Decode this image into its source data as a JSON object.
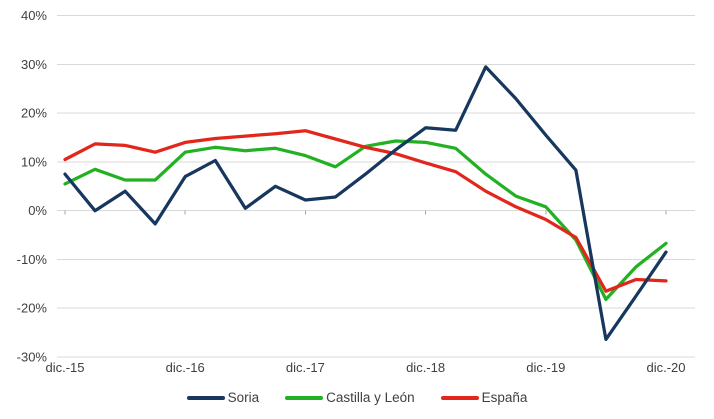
{
  "chart_data": {
    "type": "line",
    "title": "",
    "xlabel": "",
    "ylabel": "",
    "y_unit": "%",
    "ylim": [
      -30,
      40
    ],
    "grid": "horizontal",
    "legend_position": "bottom",
    "y_tick_labels": [
      "40%",
      "30%",
      "20%",
      "10%",
      "0%",
      "-10%",
      "-20%",
      "-30%"
    ],
    "y_tick_values": [
      40,
      30,
      20,
      10,
      0,
      -10,
      -20,
      -30
    ],
    "x_tick_labels": [
      "dic.-15",
      "dic.-16",
      "dic.-17",
      "dic.-18",
      "dic.-19",
      "dic.-20"
    ],
    "categories": [
      "dic.-15",
      "mar.-16",
      "jun.-16",
      "sep.-16",
      "dic.-16",
      "mar.-17",
      "jun.-17",
      "sep.-17",
      "dic.-17",
      "mar.-18",
      "jun.-18",
      "sep.-18",
      "dic.-18",
      "mar.-19",
      "jun.-19",
      "sep.-19",
      "dic.-19",
      "mar.-20",
      "jun.-20",
      "sep.-20",
      "dic.-20"
    ],
    "series": [
      {
        "name": "Soria",
        "color": "#17375E",
        "values": [
          7.5,
          0,
          4,
          -2.7,
          7,
          10.3,
          0.5,
          5,
          2.2,
          2.8,
          7.5,
          12.5,
          17,
          16.5,
          29.5,
          23,
          15.5,
          8.3,
          -26.4,
          -17.5,
          -8.5
        ]
      },
      {
        "name": "Castilla y León",
        "color": "#22B122",
        "values": [
          5.5,
          8.5,
          6.3,
          6.3,
          12,
          13,
          12.3,
          12.8,
          11.3,
          9,
          13.2,
          14.3,
          14,
          12.8,
          7.5,
          3,
          0.8,
          -6,
          -18.2,
          -11.5,
          -6.7
        ]
      },
      {
        "name": "España",
        "color": "#E2261C",
        "values": [
          10.5,
          13.7,
          13.4,
          12,
          14,
          14.8,
          15.3,
          15.8,
          16.4,
          14.7,
          13,
          11.7,
          9.8,
          8,
          4,
          0.8,
          -1.8,
          -5.5,
          -16.5,
          -14.1,
          -14.4
        ]
      }
    ]
  },
  "style_colors": {
    "gridline": "#D9D9D9",
    "tick": "#A6A6A6",
    "axis_text": "#404040"
  }
}
